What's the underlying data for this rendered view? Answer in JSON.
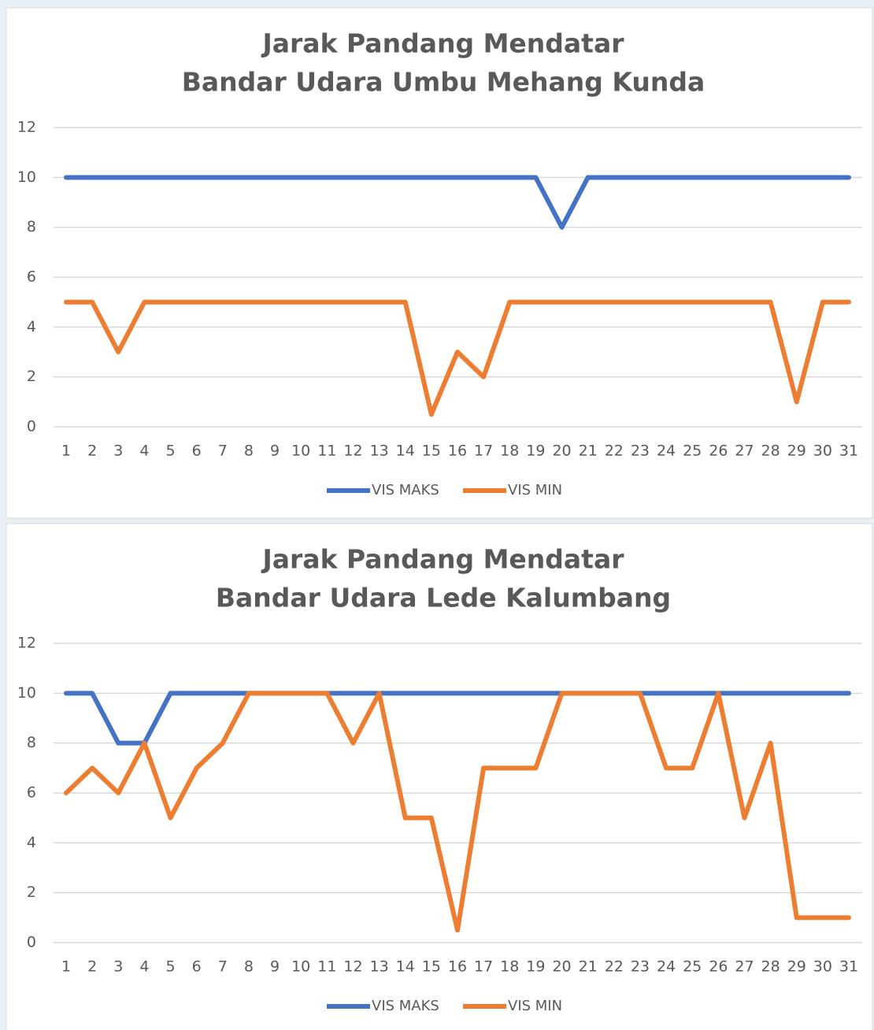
{
  "chart_data": [
    {
      "type": "line",
      "title": [
        "Jarak Pandang Mendatar",
        "Bandar Udara Umbu Mehang Kunda"
      ],
      "categories": [
        "1",
        "2",
        "3",
        "4",
        "5",
        "6",
        "7",
        "8",
        "9",
        "10",
        "11",
        "12",
        "13",
        "14",
        "15",
        "16",
        "17",
        "18",
        "19",
        "20",
        "21",
        "22",
        "23",
        "24",
        "25",
        "26",
        "27",
        "28",
        "29",
        "30",
        "31"
      ],
      "series": [
        {
          "name": "VIS MAKS",
          "color": "#4472c4",
          "values": [
            10,
            10,
            10,
            10,
            10,
            10,
            10,
            10,
            10,
            10,
            10,
            10,
            10,
            10,
            10,
            10,
            10,
            10,
            10,
            8,
            10,
            10,
            10,
            10,
            10,
            10,
            10,
            10,
            10,
            10,
            10
          ]
        },
        {
          "name": "VIS MIN",
          "color": "#ed7d31",
          "values": [
            5,
            5,
            3,
            5,
            5,
            5,
            5,
            5,
            5,
            5,
            5,
            5,
            5,
            5,
            0.5,
            3,
            2,
            5,
            5,
            5,
            5,
            5,
            5,
            5,
            5,
            5,
            5,
            5,
            1,
            5,
            5
          ]
        }
      ],
      "ylim": [
        0,
        12
      ],
      "yticks": [
        0,
        2,
        4,
        6,
        8,
        10,
        12
      ],
      "grid": true,
      "legend": "bottom"
    },
    {
      "type": "line",
      "title": [
        "Jarak Pandang Mendatar",
        "Bandar Udara Lede Kalumbang"
      ],
      "categories": [
        "1",
        "2",
        "3",
        "4",
        "5",
        "6",
        "7",
        "8",
        "9",
        "10",
        "11",
        "12",
        "13",
        "14",
        "15",
        "16",
        "17",
        "18",
        "19",
        "20",
        "21",
        "22",
        "23",
        "24",
        "25",
        "26",
        "27",
        "28",
        "29",
        "30",
        "31"
      ],
      "series": [
        {
          "name": "VIS MAKS",
          "color": "#4472c4",
          "values": [
            10,
            10,
            8,
            8,
            10,
            10,
            10,
            10,
            10,
            10,
            10,
            10,
            10,
            10,
            10,
            10,
            10,
            10,
            10,
            10,
            10,
            10,
            10,
            10,
            10,
            10,
            10,
            10,
            10,
            10,
            10
          ]
        },
        {
          "name": "VIS MIN",
          "color": "#ed7d31",
          "values": [
            6,
            7,
            6,
            8,
            5,
            7,
            8,
            10,
            10,
            10,
            10,
            8,
            10,
            5,
            5,
            0.5,
            7,
            7,
            7,
            10,
            10,
            10,
            10,
            7,
            7,
            10,
            5,
            8,
            1,
            1,
            1
          ]
        }
      ],
      "ylim": [
        0,
        12
      ],
      "yticks": [
        0,
        2,
        4,
        6,
        8,
        10,
        12
      ],
      "grid": true,
      "legend": "bottom"
    }
  ]
}
